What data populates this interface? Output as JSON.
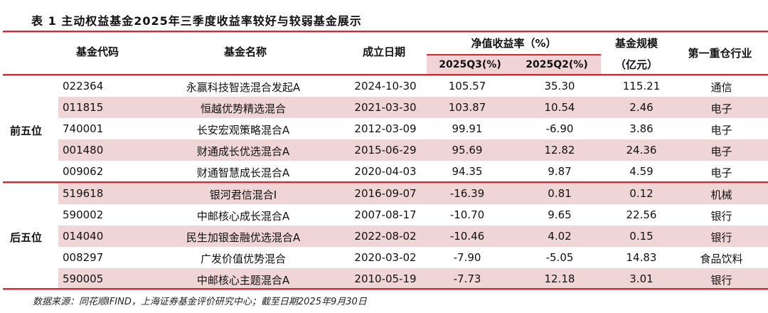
{
  "title": "表 1 主动权益基金2025年三季度收益率较好与较弱基金展示",
  "headers": {
    "code": "基金代码",
    "name": "基金名称",
    "date": "成立日期",
    "ret": "净值收益率（%）",
    "q3": "2025Q3(%)",
    "q2": "2025Q2(%)",
    "scale1": "基金规模",
    "scale2": "（亿元）",
    "industry": "第一重仓行业"
  },
  "groups": {
    "top": "前五位",
    "bottom": "后五位"
  },
  "rows": [
    [
      "022364",
      "永赢科技智选混合发起A",
      "2024-10-30",
      "105.57",
      "35.30",
      "115.21",
      "通信"
    ],
    [
      "011815",
      "恒越优势精选混合",
      "2021-03-30",
      "103.87",
      "10.54",
      "2.46",
      "电子"
    ],
    [
      "740001",
      "长安宏观策略混合A",
      "2012-03-09",
      "99.91",
      "-6.90",
      "3.86",
      "电子"
    ],
    [
      "001480",
      "财通成长优选混合A",
      "2015-06-29",
      "95.69",
      "12.82",
      "24.36",
      "电子"
    ],
    [
      "009062",
      "财通智慧成长混合A",
      "2020-04-03",
      "94.35",
      "9.87",
      "4.59",
      "电子"
    ],
    [
      "519618",
      "银河君信混合I",
      "2016-09-07",
      "-16.39",
      "0.81",
      "0.12",
      "机械"
    ],
    [
      "590002",
      "中邮核心成长混合A",
      "2007-08-17",
      "-10.70",
      "9.65",
      "22.56",
      "银行"
    ],
    [
      "014040",
      "民生加银金融优选混合A",
      "2022-08-02",
      "-10.46",
      "4.02",
      "0.15",
      "银行"
    ],
    [
      "008297",
      "广发价值优势混合",
      "2020-03-02",
      "-7.90",
      "-5.05",
      "14.83",
      "食品饮料"
    ],
    [
      "590005",
      "中邮核心主题混合A",
      "2010-05-19",
      "-7.73",
      "12.18",
      "3.01",
      "银行"
    ]
  ],
  "note": "数据来源：同花顺IFIND，上海证券基金评价研究中心；截至日期2025年9月30日",
  "colors": {
    "accent": "#d7262d",
    "band": "#f0d5d6"
  }
}
